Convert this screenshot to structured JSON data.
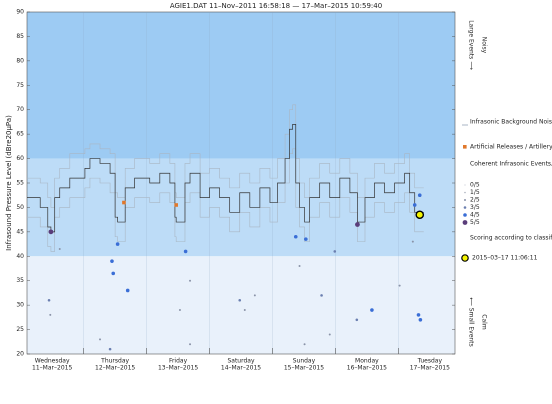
{
  "chart_data": {
    "type": "infrasound",
    "title": "AGIE1.DAT   11–Nov–2011 16:58:18   —   17–Mar–2015 10:59:40",
    "ylabel": "Infrasound Pressure Level   (dBre20µPa)",
    "xlim": [
      0.1,
      6.9
    ],
    "ylim": [
      20,
      90
    ],
    "yticks": [
      20,
      25,
      30,
      35,
      40,
      45,
      50,
      55,
      60,
      65,
      70,
      75,
      80,
      85,
      90
    ],
    "day_boundaries": [
      1,
      2,
      3,
      4,
      5,
      6
    ],
    "days": [
      {
        "value": 0.5,
        "label": "Wednesday",
        "date": "11–Mar–2015"
      },
      {
        "value": 1.5,
        "label": "Thursday",
        "date": "12–Mar–2015"
      },
      {
        "value": 2.5,
        "label": "Friday",
        "date": "13–Mar–2015"
      },
      {
        "value": 3.5,
        "label": "Saturday",
        "date": "14–Mar–2015"
      },
      {
        "value": 4.5,
        "label": "Sunday",
        "date": "15–Mar–2015"
      },
      {
        "value": 5.5,
        "label": "Monday",
        "date": "16–Mar–2015"
      },
      {
        "value": 6.5,
        "label": "Tuesday",
        "date": "17–Mar–2015"
      }
    ],
    "bands": [
      {
        "from": 60,
        "to": 90,
        "color": "#9dcbf3"
      },
      {
        "from": 40,
        "to": 60,
        "color": "#bddcf7"
      },
      {
        "from": 20,
        "to": 40,
        "color": "#e9f1fb"
      }
    ],
    "noise": {
      "name": "Infrasonic Background Noise",
      "color": "#333333",
      "range_color": "#a9b6c4",
      "x": [
        0.1,
        0.31,
        0.43,
        0.48,
        0.54,
        0.62,
        0.78,
        1.02,
        1.1,
        1.26,
        1.42,
        1.5,
        1.54,
        1.66,
        1.81,
        2.05,
        2.21,
        2.37,
        2.45,
        2.47,
        2.61,
        2.69,
        2.85,
        3.0,
        3.16,
        3.32,
        3.48,
        3.64,
        3.8,
        3.96,
        4.08,
        4.2,
        4.27,
        4.32,
        4.37,
        4.43,
        4.51,
        4.59,
        4.75,
        4.91,
        5.07,
        5.23,
        5.35,
        5.47,
        5.62,
        5.78,
        5.94,
        6.1,
        6.18,
        6.26,
        6.34
      ],
      "values": [
        52,
        50,
        46,
        45,
        52,
        54,
        56,
        58,
        60,
        59,
        57,
        48,
        47,
        54,
        56,
        55,
        57,
        55,
        48,
        47,
        55,
        57,
        52,
        54,
        52,
        49,
        53,
        50,
        54,
        51,
        55,
        60,
        66,
        67,
        55,
        50,
        47,
        52,
        55,
        52,
        56,
        53,
        47,
        52,
        55,
        53,
        55,
        57,
        53,
        49,
        49
      ],
      "upper": [
        56,
        55,
        52,
        50,
        56,
        58,
        61,
        62,
        63,
        62,
        61,
        53,
        52,
        58,
        60,
        59,
        61,
        59,
        53,
        52,
        59,
        61,
        57,
        58,
        56,
        54,
        57,
        55,
        58,
        56,
        60,
        65,
        70,
        71,
        60,
        55,
        52,
        56,
        59,
        57,
        60,
        57,
        52,
        56,
        59,
        57,
        59,
        61,
        57,
        54,
        54
      ],
      "lower": [
        48,
        46,
        42,
        41,
        48,
        50,
        52,
        54,
        56,
        55,
        53,
        44,
        43,
        50,
        52,
        51,
        53,
        51,
        44,
        43,
        51,
        53,
        48,
        50,
        48,
        45,
        49,
        46,
        50,
        47,
        51,
        55,
        61,
        62,
        50,
        46,
        43,
        48,
        51,
        48,
        52,
        49,
        43,
        48,
        51,
        49,
        51,
        53,
        49,
        45,
        45
      ]
    },
    "artificial": {
      "name": "Artificial Releases / Artillery",
      "color": "#e0782c",
      "x": [
        1.64,
        2.47
      ],
      "values": [
        51,
        50.5
      ]
    },
    "events_title": "Coherent Infrasonic Events, by Score:",
    "scores": [
      {
        "label": "0/5",
        "color": "#c8ccd4"
      },
      {
        "label": "1/5",
        "color": "#aab0bc"
      },
      {
        "label": "2/5",
        "color": "#8a93a8"
      },
      {
        "label": "3/5",
        "color": "#6b7fb0"
      },
      {
        "label": "4/5",
        "color": "#3a6ed6"
      },
      {
        "label": "5/5",
        "color": "#5a3d7a"
      }
    ],
    "events": {
      "x": [
        0.48,
        5.35,
        1.54,
        1.47,
        1.45,
        1.7,
        2.62,
        4.37,
        4.53,
        4.99,
        6.34,
        6.26,
        6.35,
        6.32,
        5.58,
        5.34,
        0.45,
        0.47,
        0.62,
        1.26,
        2.69,
        3.48,
        3.56,
        3.72,
        4.43,
        4.78,
        4.51,
        4.91,
        6.02,
        2.69,
        2.53,
        1.42,
        6.23
      ],
      "values": [
        45,
        46.5,
        42.5,
        36.5,
        39,
        33,
        41,
        44,
        43.5,
        41,
        52.5,
        50.5,
        27,
        28,
        29,
        27,
        31,
        28,
        41.5,
        23,
        22,
        31,
        29,
        32,
        38,
        32,
        22,
        24,
        34,
        35,
        29,
        21,
        43
      ],
      "score": [
        5,
        5,
        4,
        4,
        4,
        4,
        4,
        4,
        4,
        3,
        4,
        4,
        4,
        4,
        4,
        3,
        3,
        2,
        2,
        2,
        2,
        3,
        2,
        2,
        2,
        3,
        2,
        2,
        2,
        2,
        2,
        3,
        2
      ]
    },
    "scoring_note": "Scoring according to classification bounds",
    "highlight": {
      "label": "2015–03–17 11:06:11",
      "color": "#f5f500",
      "x": 6.34,
      "value": 48.5
    },
    "top_label": "Large Events ⟶",
    "top_state": "Noisy",
    "bottom_label": "⟵ Small Events",
    "bottom_state": "Calm"
  }
}
